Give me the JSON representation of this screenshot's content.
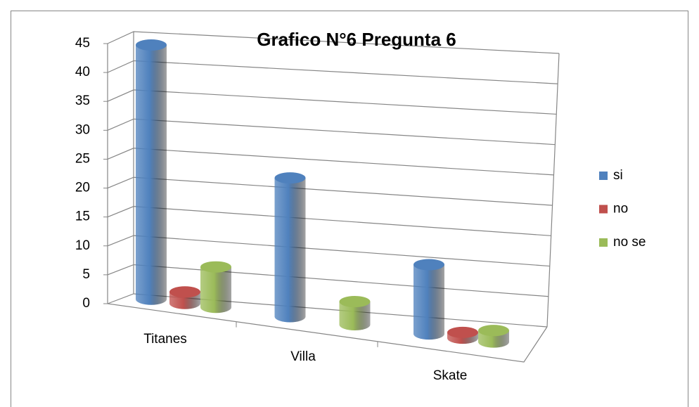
{
  "chart_data": {
    "type": "bar3d",
    "title": "Grafico N°6 Pregunta 6",
    "categories": [
      "Titanes",
      "Villa",
      "Skate"
    ],
    "series": [
      {
        "name": "si",
        "color": "#4f81bd",
        "values": [
          44,
          24,
          12
        ]
      },
      {
        "name": "no",
        "color": "#c0504d",
        "values": [
          2,
          0,
          1
        ]
      },
      {
        "name": "no se",
        "color": "#9bbb59",
        "values": [
          7,
          4,
          2
        ]
      }
    ],
    "ylim": [
      0,
      45
    ],
    "yticks": [
      0,
      5,
      10,
      15,
      20,
      25,
      30,
      35,
      40,
      45
    ],
    "grid": true,
    "legend": "right"
  }
}
